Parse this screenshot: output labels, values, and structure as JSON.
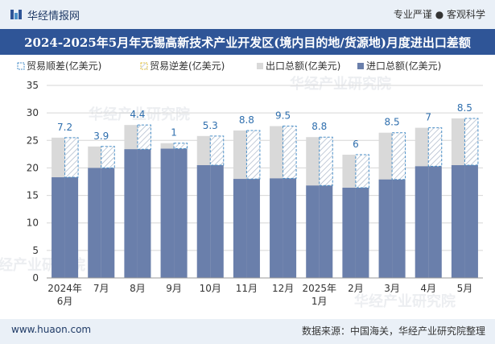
{
  "header": {
    "brand": "华经情报网",
    "tagline": "专业严谨 ● 客观科学"
  },
  "title": "2024-2025年5月年无锡高新技术产业开发区(境内目的地/货源地)月度进出口差额",
  "footer": {
    "website": "www.huaon.com",
    "source": "数据来源：中国海关，华经产业研究院整理"
  },
  "watermarks": [
    "华经产业研究院",
    "华经产业研究院",
    "华经产业研究院",
    "华经产业研究院"
  ],
  "colors": {
    "export": "#d9d9d9",
    "import": "#6a7fab",
    "surplus_border": "#4a8fc8",
    "title_bg": "#2f5597"
  },
  "chart_data": {
    "type": "bar",
    "legend": [
      "贸易顺差(亿美元)",
      "贸易逆差(亿美元)",
      "出口总额(亿美元)",
      "进口总额(亿美元)"
    ],
    "categories": [
      "2024年\n6月",
      "7月",
      "8月",
      "9月",
      "10月",
      "11月",
      "12月",
      "2025年\n1月",
      "2月",
      "3月",
      "4月",
      "5月"
    ],
    "series": [
      {
        "name": "出口总额(亿美元)",
        "values": [
          25.5,
          23.9,
          27.8,
          24.5,
          25.8,
          26.8,
          27.6,
          25.6,
          22.4,
          26.4,
          27.3,
          29.0
        ]
      },
      {
        "name": "进口总额(亿美元)",
        "values": [
          18.3,
          20.0,
          23.4,
          23.5,
          20.5,
          18.0,
          18.1,
          16.8,
          16.4,
          17.9,
          20.3,
          20.5
        ]
      },
      {
        "name": "贸易顺差(亿美元)",
        "values": [
          7.2,
          3.9,
          4.4,
          1,
          5.3,
          8.8,
          9.5,
          8.8,
          6,
          8.5,
          7,
          8.5
        ]
      }
    ],
    "ylim": [
      0,
      35
    ],
    "yticks": [
      0,
      5,
      10,
      15,
      20,
      25,
      30,
      35
    ],
    "grid": true,
    "legend_position": "top-left"
  }
}
